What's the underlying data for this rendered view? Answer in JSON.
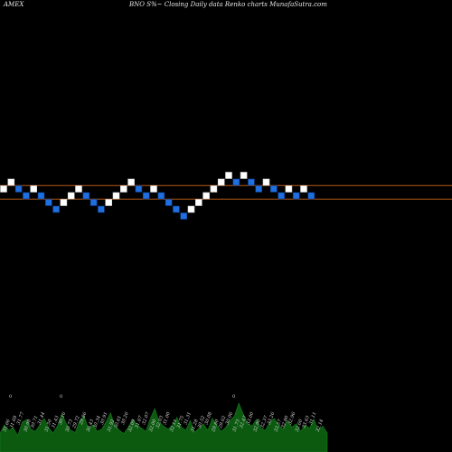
{
  "header": {
    "exchange": "AMEX",
    "caption": "BNO S%~ Closing Daily data Renko charts MunafaSutra.com"
  },
  "colors": {
    "up_brick": "#ffffff",
    "down_brick": "#1f6fe0",
    "reference_line": "#b85a18",
    "volume_fill": "#0b5a10",
    "background": "#000000"
  },
  "chart_data": {
    "type": "renko",
    "title": "BNO S%~ Closing Daily data Renko charts MunafaSutra.com",
    "levels": [
      0,
      1,
      0,
      -1,
      0,
      -1,
      -2,
      -3,
      -2,
      -1,
      0,
      -1,
      -2,
      -3,
      -2,
      -1,
      0,
      1,
      0,
      -1,
      0,
      -1,
      -2,
      -3,
      -4,
      -3,
      -2,
      -1,
      0,
      1,
      2,
      1,
      2,
      1,
      0,
      1,
      0,
      -1,
      0,
      -1,
      0,
      -1
    ],
    "directions": [
      "up",
      "up",
      "down",
      "down",
      "up",
      "down",
      "down",
      "down",
      "up",
      "up",
      "up",
      "down",
      "down",
      "down",
      "up",
      "up",
      "up",
      "up",
      "down",
      "down",
      "up",
      "down",
      "down",
      "down",
      "down",
      "up",
      "up",
      "up",
      "up",
      "up",
      "up",
      "down",
      "up",
      "down",
      "down",
      "up",
      "down",
      "down",
      "up",
      "down",
      "up",
      "down"
    ],
    "reference_levels": [
      0.5,
      -1.5
    ],
    "grid": false,
    "x_tick_labels": [
      "31.66",
      "31.69",
      "31.77",
      "30.98",
      "30.71",
      "31.44",
      "31.50",
      "31.43",
      "30.16",
      "30.73",
      "29.72",
      "29.86",
      "30.43",
      "30.34",
      "30.91",
      "31.92",
      "30.61",
      "30.26",
      "32.09",
      "31.67",
      "32.07",
      "32.00",
      "32.03",
      "31.00",
      "32.11",
      "31.75",
      "31.31",
      "31.28",
      "30.52",
      "30.08",
      "29.80",
      "29.62",
      "30.06",
      "31.73",
      "32.47",
      "33.00",
      "32.90",
      "32.37",
      "33.26",
      "33.57",
      "32.80",
      "32.96",
      "32.60",
      "33.63",
      "31.11",
      "32.14"
    ],
    "volume_markers": [
      "0",
      "0",
      "0"
    ],
    "volumes": [
      0.35,
      0.5,
      0.4,
      0.45,
      0.3,
      0.55,
      0.6,
      0.42,
      0.38,
      0.5,
      0.62,
      0.45,
      0.35,
      0.48,
      0.7,
      0.52,
      0.4,
      0.36,
      0.58,
      0.66,
      0.44,
      0.5,
      0.38,
      0.42,
      0.56,
      0.72,
      0.48,
      0.4,
      0.34,
      0.46,
      0.6,
      0.5,
      0.44,
      0.38,
      0.62,
      0.8,
      0.55,
      0.48,
      0.42,
      0.5,
      0.64,
      0.46,
      0.4,
      0.58,
      0.36,
      0.44,
      0.52,
      0.4,
      0.62,
      0.5,
      0.38,
      0.45,
      0.58,
      0.66,
      0.9,
      0.7,
      0.52,
      0.48,
      0.6,
      0.44,
      0.4,
      0.55,
      0.62,
      0.5,
      0.42,
      0.58,
      0.46,
      0.52,
      0.38,
      0.5,
      0.44,
      0.6,
      0.4,
      0.48,
      0.35
    ]
  }
}
